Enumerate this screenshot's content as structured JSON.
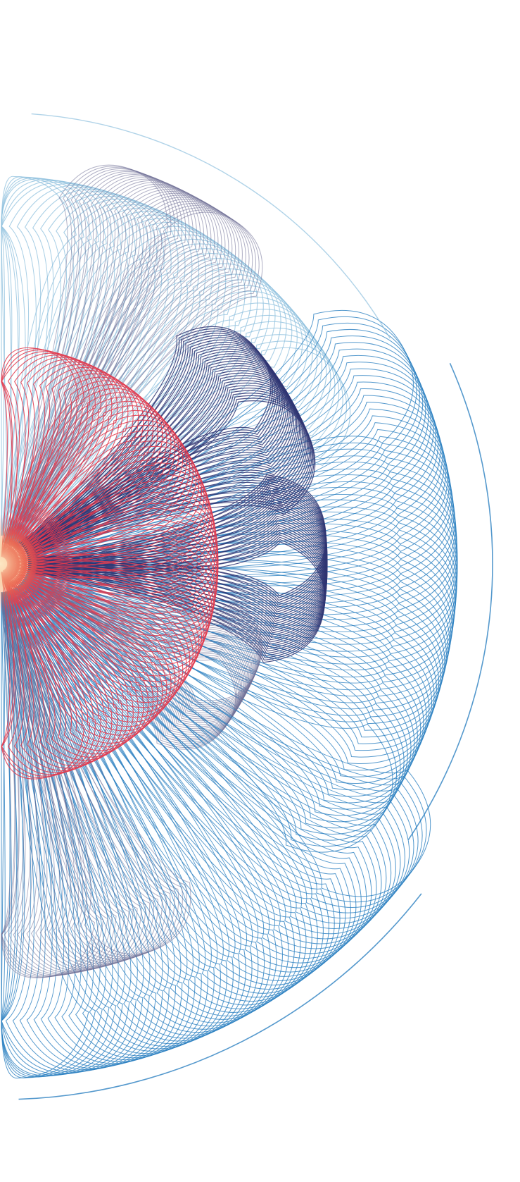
{
  "artwork": {
    "subject": "spirograph-flower-line-art",
    "palette": {
      "red": "#e23a4e",
      "navy": "#2f3572",
      "blue": "#2a7fc0",
      "pale_blue": "#8fc0de",
      "slate": "#6f7096",
      "glow": "#f5a25a"
    }
  }
}
